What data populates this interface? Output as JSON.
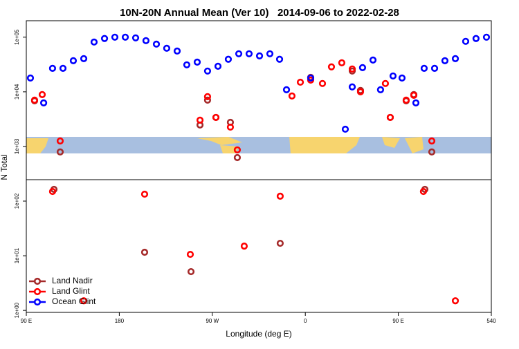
{
  "chart_data": {
    "type": "scatter",
    "title": "10N-20N Annual Mean (Ver 10)   2014-09-06 to 2022-02-28",
    "x_label": "Longitude (deg E)",
    "y_label": "N Total",
    "log_y": true,
    "legend": "bottom-left",
    "xlim": [
      90,
      540
    ],
    "xticks": [
      {
        "value": 90,
        "label": "90 E"
      },
      180,
      {
        "value": 270,
        "label": "90 W"
      },
      {
        "value": 360,
        "label": "0"
      },
      {
        "value": 450,
        "label": "90 E"
      },
      540
    ],
    "ylim": [
      0.92,
      200000
    ],
    "yticks": [
      {
        "value": 1,
        "label": "1e+00"
      },
      {
        "value": 10,
        "label": "1e+01"
      },
      {
        "value": 100,
        "label": "1e+02"
      },
      {
        "value": 1000,
        "label": "1e+03"
      },
      {
        "value": 10000,
        "label": "1e+04"
      },
      {
        "value": 100000,
        "label": "1e+05"
      }
    ],
    "series": [
      {
        "name": "Land Nadir",
        "color": "#a52a2a",
        "x": [
          98.0,
          122.8,
          116.8,
          204.5,
          249.4,
          258.1,
          265.4,
          273.5,
          287.5,
          294.2,
          335.7,
          365.2,
          405.4,
          413.4,
          442.2,
          457.6,
          465.0,
          475.7,
          482.4
        ],
        "values": [
          6840,
          793,
          164,
          11.6,
          5.12,
          2470,
          7050,
          3400,
          2770,
          627,
          16.9,
          18400,
          24000,
          10600,
          3400,
          6840,
          8890,
          164,
          793
        ]
      },
      {
        "name": "Land Glint",
        "color": "#ff0000",
        "x": [
          98.0,
          105.4,
          122.8,
          115.4,
          145.6,
          204.5,
          248.7,
          258.1,
          265.4,
          273.5,
          287.5,
          294.2,
          300.9,
          335.7,
          347.1,
          355.2,
          365.2,
          376.6,
          385.3,
          395.3,
          405.4,
          413.4,
          437.5,
          442.2,
          457.6,
          465.0,
          474.3,
          482.4,
          505.2
        ],
        "values": [
          7050,
          8890,
          1260,
          150,
          1.5,
          134,
          10.6,
          3030,
          8150,
          3400,
          2260,
          865,
          15.0,
          123,
          8400,
          15000,
          16400,
          14200,
          28600,
          34000,
          26200,
          10000,
          14200,
          3400,
          7050,
          8650,
          150,
          1260,
          1.5
        ]
      },
      {
        "name": "Ocean Glint",
        "color": "#0000ff",
        "x": [
          94.0,
          106.8,
          115.4,
          125.5,
          135.5,
          145.6,
          155.6,
          165.7,
          175.7,
          185.8,
          195.8,
          205.8,
          215.9,
          225.9,
          236.0,
          245.3,
          255.4,
          265.4,
          275.5,
          285.5,
          295.6,
          305.6,
          315.7,
          325.7,
          335.1,
          341.8,
          365.2,
          398.7,
          405.4,
          415.4,
          425.5,
          432.8,
          444.9,
          453.6,
          467.0,
          475.0,
          485.1,
          495.1,
          505.2,
          515.2,
          525.2,
          535.3
        ],
        "values": [
          17900,
          6270,
          26900,
          26900,
          37100,
          40500,
          81500,
          94400,
          100000,
          100000,
          97100,
          86400,
          74700,
          62700,
          55800,
          31200,
          35000,
          24000,
          29400,
          39400,
          49700,
          49700,
          45500,
          49700,
          39400,
          10900,
          17900,
          2070,
          12300,
          27700,
          38200,
          10900,
          19500,
          17900,
          6270,
          26900,
          26900,
          37100,
          40500,
          83900,
          94400,
          100000
        ]
      }
    ]
  }
}
